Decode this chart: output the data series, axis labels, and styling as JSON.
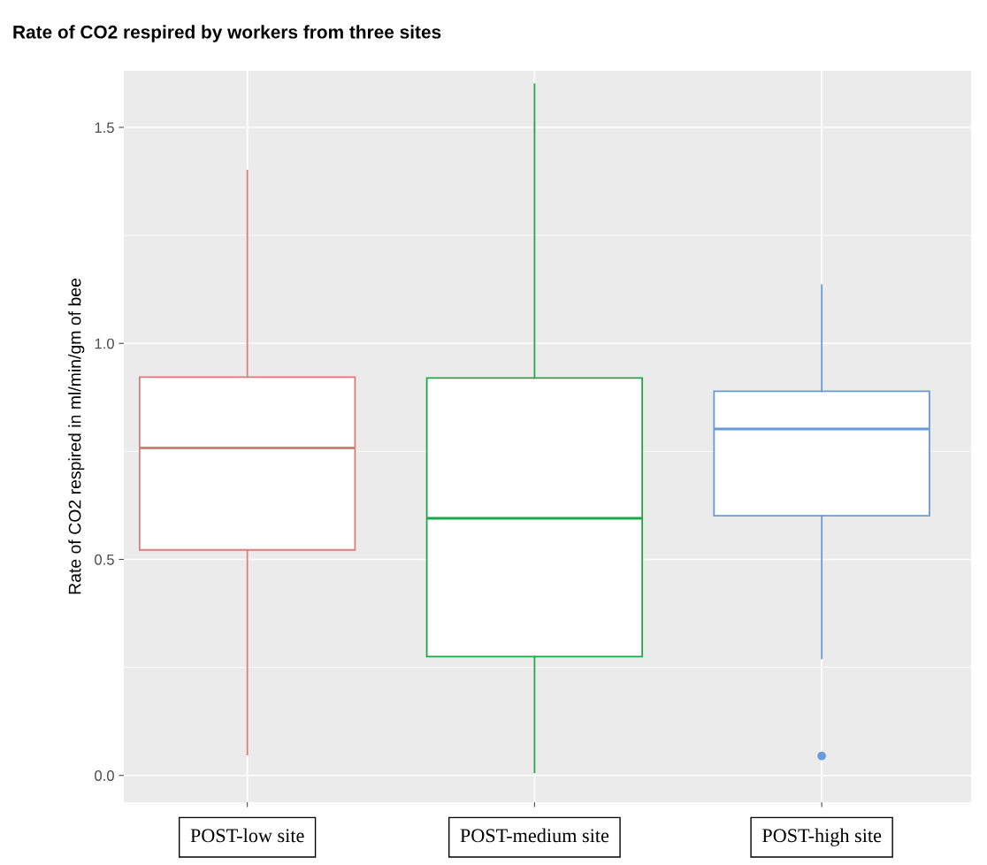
{
  "chart_data": {
    "type": "box",
    "title": "Rate of CO2 respired by workers from three sites",
    "ylabel": "Rate of CO2 respired in ml/min/gm of bee",
    "categories": [
      "POST-low site",
      "POST-medium site",
      "POST-high site"
    ],
    "colors": [
      "#d77f7a",
      "#1fa64a",
      "#6a9bd8"
    ],
    "boxes": [
      {
        "low": 0.048,
        "q1": 0.522,
        "median": 0.758,
        "q3": 0.922,
        "high": 1.4
      },
      {
        "low": 0.007,
        "q1": 0.275,
        "median": 0.595,
        "q3": 0.92,
        "high": 1.6
      },
      {
        "low": 0.271,
        "q1": 0.601,
        "median": 0.802,
        "q3": 0.889,
        "high": 1.135,
        "outliers": [
          0.045
        ]
      }
    ],
    "ylim": [
      -0.062,
      1.631
    ],
    "yticks": [
      {
        "value": 0,
        "label": "0.0"
      },
      0.5,
      {
        "value": 1,
        "label": "1.0"
      },
      1.5
    ],
    "grid": true
  }
}
